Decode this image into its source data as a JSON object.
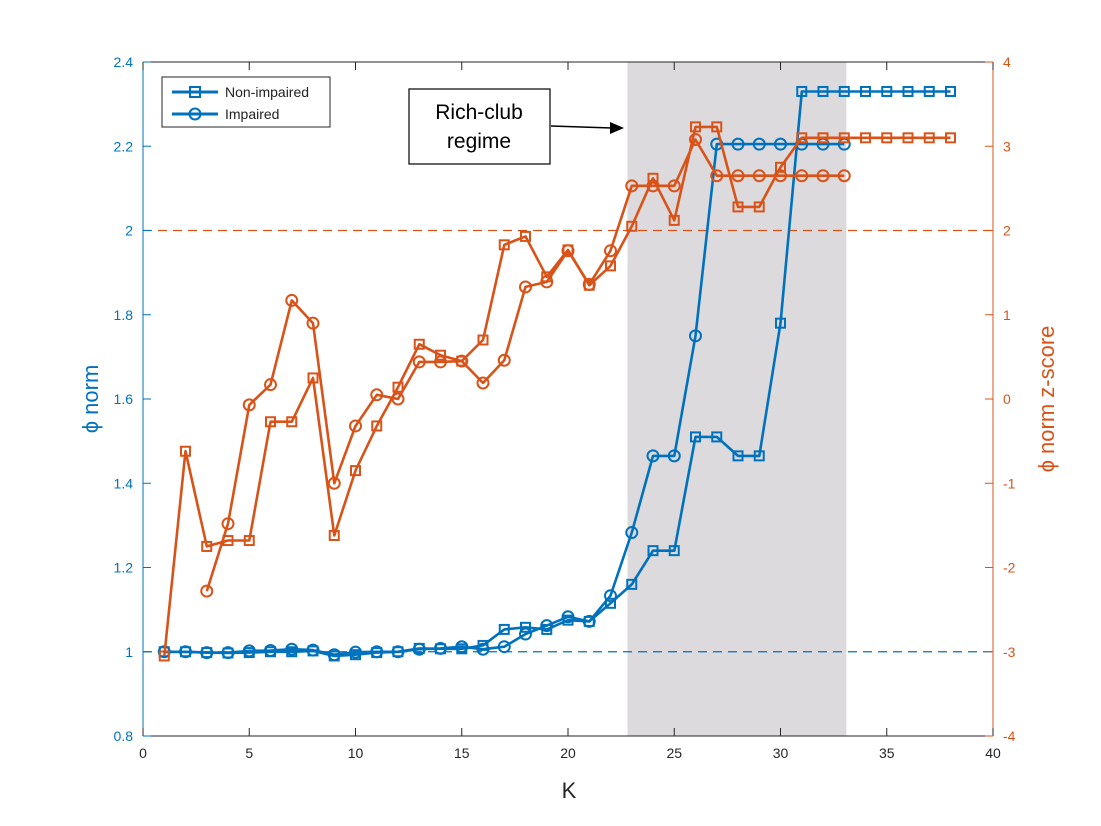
{
  "chart_data": {
    "type": "line",
    "xlabel": "K",
    "ylabel_left": "ϕ norm",
    "ylabel_right": "ϕ norm z-score",
    "xlim": [
      0,
      40
    ],
    "ylim_left": [
      0.8,
      2.4
    ],
    "ylim_right": [
      -4,
      4
    ],
    "xticks": [
      0,
      5,
      10,
      15,
      20,
      25,
      30,
      35,
      40
    ],
    "yticks_left": [
      0.8,
      1,
      1.2,
      1.4,
      1.6,
      1.8,
      2,
      2.2,
      2.4
    ],
    "yticks_right": [
      -4,
      -3,
      -2,
      -1,
      0,
      1,
      2,
      3,
      4
    ],
    "grid": false,
    "legend_placement": "top-left",
    "colors": {
      "left_axis": "#0072BD",
      "right_axis": "#D95319",
      "shade": "#DCDADC",
      "axes": "#262626"
    },
    "reference_lines": [
      {
        "axis": "left",
        "y": 1,
        "style": "dashed",
        "color": "#0072BD"
      },
      {
        "axis": "right",
        "y": 2,
        "style": "dashed",
        "color": "#D95319"
      }
    ],
    "shaded_region": {
      "x0": 22.8,
      "x1": 33.1
    },
    "annotation": {
      "lines": [
        "Rich-club",
        "regime"
      ],
      "arrow_target_x": 22.9,
      "arrow_target_y_left": 2.17
    },
    "legend": [
      {
        "label": "Non-impaired",
        "marker": "square"
      },
      {
        "label": "Impaired",
        "marker": "circle"
      }
    ],
    "series": [
      {
        "name": "Non-impaired",
        "axis": "left",
        "marker": "square",
        "color": "#0072BD",
        "x": [
          1,
          2,
          3,
          4,
          5,
          6,
          7,
          8,
          9,
          10,
          11,
          12,
          13,
          14,
          15,
          16,
          17,
          18,
          19,
          20,
          21,
          22,
          23,
          24,
          25,
          26,
          27,
          28,
          29,
          30,
          31,
          32,
          33,
          34,
          35,
          36,
          37,
          38
        ],
        "y": [
          1.0,
          1.0,
          0.998,
          0.997,
          0.998,
          1.0,
          1.0,
          1.002,
          0.99,
          0.993,
          0.998,
          1.0,
          1.008,
          1.007,
          1.007,
          1.015,
          1.053,
          1.058,
          1.053,
          1.075,
          1.072,
          1.115,
          1.16,
          1.24,
          1.24,
          1.51,
          1.51,
          1.465,
          1.465,
          1.78,
          2.33,
          2.33,
          2.33,
          2.33,
          2.33,
          2.33,
          2.33,
          2.33
        ]
      },
      {
        "name": "Impaired",
        "axis": "left",
        "marker": "circle",
        "color": "#0072BD",
        "x": [
          1,
          2,
          3,
          4,
          5,
          6,
          7,
          8,
          9,
          10,
          11,
          12,
          13,
          14,
          15,
          16,
          17,
          18,
          19,
          20,
          21,
          22,
          23,
          24,
          25,
          26,
          27,
          28,
          29,
          30,
          31,
          32,
          33
        ],
        "y": [
          1.0,
          1.0,
          0.998,
          0.998,
          1.002,
          1.003,
          1.006,
          1.004,
          0.993,
          0.999,
          1.0,
          1.0,
          1.006,
          1.008,
          1.012,
          1.006,
          1.012,
          1.042,
          1.062,
          1.083,
          1.072,
          1.133,
          1.283,
          1.465,
          1.465,
          1.75,
          2.205,
          2.205,
          2.205,
          2.205,
          2.205,
          2.205,
          2.205
        ]
      },
      {
        "name": "Non-impaired",
        "axis": "right",
        "marker": "square",
        "color": "#D95319",
        "x": [
          1,
          2,
          3,
          4,
          5,
          6,
          7,
          8,
          9,
          10,
          11,
          12,
          13,
          14,
          15,
          16,
          17,
          18,
          19,
          20,
          21,
          22,
          23,
          24,
          25,
          26,
          27,
          28,
          29,
          30,
          31,
          32,
          33,
          34,
          35,
          36,
          37,
          38
        ],
        "y": [
          -3.05,
          -0.62,
          -1.75,
          -1.68,
          -1.68,
          -0.27,
          -0.27,
          0.25,
          -1.62,
          -0.85,
          -0.32,
          0.14,
          0.65,
          0.52,
          0.45,
          0.7,
          1.83,
          1.93,
          1.45,
          1.77,
          1.35,
          1.58,
          2.05,
          2.62,
          2.12,
          3.23,
          3.23,
          2.28,
          2.28,
          2.75,
          3.1,
          3.1,
          3.1,
          3.1,
          3.1,
          3.1,
          3.1,
          3.1
        ]
      },
      {
        "name": "Impaired",
        "axis": "right",
        "marker": "circle",
        "color": "#D95319",
        "x": [
          3,
          4,
          5,
          6,
          7,
          8,
          9,
          10,
          11,
          12,
          13,
          14,
          15,
          16,
          17,
          18,
          19,
          20,
          21,
          22,
          23,
          24,
          25,
          26,
          27,
          28,
          29,
          30,
          31,
          32,
          33
        ],
        "y": [
          -2.28,
          -1.48,
          -0.07,
          0.17,
          1.17,
          0.9,
          -1.0,
          -0.32,
          0.05,
          0.0,
          0.44,
          0.44,
          0.45,
          0.19,
          0.46,
          1.33,
          1.39,
          1.76,
          1.36,
          1.76,
          2.53,
          2.53,
          2.53,
          3.08,
          2.65,
          2.65,
          2.65,
          2.65,
          2.65,
          2.65,
          2.65
        ]
      }
    ]
  }
}
